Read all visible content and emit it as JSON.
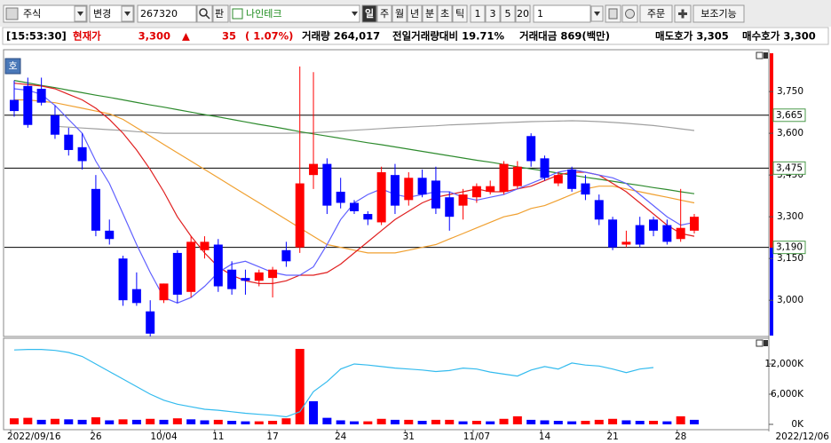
{
  "toolbar": {
    "market": "주식",
    "change": "변경",
    "code": "267320",
    "pan": "판",
    "name": "나인테크",
    "periods": [
      "일",
      "주",
      "월",
      "년",
      "분",
      "초",
      "틱"
    ],
    "minutes": [
      "1",
      "3",
      "5",
      "20"
    ],
    "count": "1",
    "order": "주문",
    "aux": "보조기능"
  },
  "quote": {
    "time": "[15:53:30]",
    "label": "현재가",
    "price": "3,300",
    "arrow": "▲",
    "change": "35",
    "change_pct": "( 1.07%)",
    "volume": "거래량 264,017",
    "volume_ratio": "전일거래량대비 19.71%",
    "amount": "거래대금 869(백만)",
    "ask": "매도호가 3,305",
    "bid": "매수호가 3,300"
  },
  "panel_badge": "호",
  "date_range_end": "2022/12/06",
  "chart_data": [
    {
      "type": "candlestick",
      "categories": [
        "2022/09/16",
        null,
        null,
        null,
        null,
        null,
        "26",
        null,
        null,
        null,
        null,
        "10/04",
        null,
        null,
        null,
        "11",
        null,
        null,
        null,
        "17",
        null,
        null,
        null,
        null,
        "24",
        null,
        null,
        null,
        null,
        "31",
        null,
        null,
        null,
        null,
        "11/07",
        null,
        null,
        null,
        null,
        "14",
        null,
        null,
        null,
        null,
        "21",
        null,
        null,
        null,
        null,
        "28",
        null
      ],
      "open": [
        3720,
        3770,
        3760,
        3665,
        3595,
        3550,
        3400,
        3250,
        3150,
        3040,
        2960,
        3000,
        3170,
        3030,
        3180,
        3200,
        3110,
        3080,
        3070,
        3080,
        3180,
        3190,
        3450,
        3490,
        3390,
        3350,
        3310,
        3280,
        3450,
        3360,
        3440,
        3430,
        3370,
        3340,
        3370,
        3390,
        3390,
        3410,
        3590,
        3510,
        3420,
        3470,
        3420,
        3360,
        3290,
        3200,
        3270,
        3290,
        3270,
        3220,
        3250
      ],
      "high": [
        3790,
        3800,
        3800,
        3700,
        3620,
        3600,
        3450,
        3290,
        3160,
        3100,
        3000,
        3060,
        3180,
        3230,
        3230,
        3220,
        3140,
        3110,
        3110,
        3120,
        3210,
        3840,
        3820,
        3510,
        3440,
        3360,
        3320,
        3480,
        3490,
        3460,
        3470,
        3480,
        3390,
        3400,
        3420,
        3430,
        3500,
        3500,
        3600,
        3520,
        3460,
        3480,
        3450,
        3380,
        3300,
        3250,
        3300,
        3300,
        3290,
        3400,
        3310
      ],
      "low": [
        3660,
        3620,
        3700,
        3580,
        3520,
        3470,
        3230,
        3200,
        2980,
        2980,
        2870,
        2990,
        2990,
        3010,
        3150,
        3030,
        3020,
        3020,
        3050,
        3010,
        3120,
        3170,
        3400,
        3310,
        3330,
        3310,
        3270,
        3270,
        3310,
        3340,
        3370,
        3310,
        3250,
        3290,
        3350,
        3380,
        3380,
        3400,
        3480,
        3430,
        3410,
        3390,
        3360,
        3270,
        3180,
        3190,
        3190,
        3230,
        3200,
        3210,
        3240
      ],
      "close": [
        3680,
        3630,
        3710,
        3595,
        3540,
        3500,
        3250,
        3220,
        3000,
        2990,
        2880,
        3060,
        3020,
        3210,
        3210,
        3050,
        3040,
        3070,
        3100,
        3110,
        3140,
        3420,
        3490,
        3340,
        3350,
        3320,
        3290,
        3460,
        3340,
        3440,
        3380,
        3330,
        3300,
        3380,
        3410,
        3410,
        3490,
        3480,
        3500,
        3440,
        3450,
        3400,
        3380,
        3290,
        3190,
        3210,
        3200,
        3250,
        3210,
        3260,
        3300
      ],
      "up_color": "#ff0000",
      "down_color": "#0000ff",
      "series": [
        {
          "color": "#a0a0a0",
          "values": [
            null,
            null,
            null,
            3625,
            3622,
            3619,
            3616,
            3613,
            3610,
            3606,
            3603,
            3600,
            3600,
            3600,
            3600,
            3600,
            3600,
            3600,
            3600,
            3600,
            3600,
            3601,
            3602,
            3605,
            3608,
            3611,
            3614,
            3617,
            3620,
            3622,
            3625,
            3627,
            3630,
            3632,
            3634,
            3636,
            3638,
            3640,
            3642,
            3643,
            3644,
            3645,
            3644,
            3642,
            3639,
            3636,
            3632,
            3628,
            3622,
            3616,
            3610
          ]
        },
        {
          "color": "#2e8b2e",
          "values": [
            3790,
            3781,
            3772,
            3764,
            3755,
            3746,
            3737,
            3729,
            3720,
            3711,
            3702,
            3694,
            3685,
            3676,
            3667,
            3659,
            3650,
            3641,
            3632,
            3624,
            3615,
            3606,
            3598,
            3590,
            3582,
            3574,
            3566,
            3559,
            3551,
            3543,
            3535,
            3527,
            3519,
            3511,
            3503,
            3496,
            3488,
            3480,
            3472,
            3465,
            3457,
            3450,
            3442,
            3435,
            3428,
            3420,
            3413,
            3405,
            3398,
            3390,
            3383
          ]
        },
        {
          "color": "#f0a030",
          "values": [
            3720,
            3720,
            3715,
            3710,
            3700,
            3690,
            3680,
            3670,
            3650,
            3620,
            3590,
            3560,
            3530,
            3500,
            3470,
            3440,
            3410,
            3380,
            3350,
            3320,
            3290,
            3260,
            3230,
            3200,
            3190,
            3180,
            3170,
            3170,
            3170,
            3180,
            3190,
            3200,
            3220,
            3240,
            3260,
            3280,
            3300,
            3310,
            3330,
            3340,
            3360,
            3380,
            3400,
            3410,
            3410,
            3400,
            3390,
            3380,
            3370,
            3360,
            3350
          ]
        },
        {
          "color": "#e02020",
          "values": [
            3780,
            3775,
            3770,
            3760,
            3740,
            3720,
            3690,
            3650,
            3600,
            3540,
            3470,
            3390,
            3300,
            3230,
            3170,
            3120,
            3090,
            3070,
            3060,
            3060,
            3070,
            3090,
            3090,
            3100,
            3130,
            3170,
            3210,
            3250,
            3290,
            3320,
            3350,
            3370,
            3380,
            3390,
            3400,
            3390,
            3390,
            3400,
            3410,
            3430,
            3450,
            3460,
            3460,
            3450,
            3420,
            3390,
            3350,
            3310,
            3270,
            3240,
            3230
          ]
        },
        {
          "color": "#6060ff",
          "values": [
            3760,
            3755,
            3740,
            3700,
            3650,
            3600,
            3500,
            3420,
            3310,
            3200,
            3100,
            3010,
            2990,
            3010,
            3050,
            3100,
            3130,
            3140,
            3120,
            3100,
            3090,
            3090,
            3120,
            3200,
            3290,
            3350,
            3380,
            3400,
            3380,
            3370,
            3380,
            3390,
            3390,
            3370,
            3360,
            3370,
            3380,
            3400,
            3420,
            3440,
            3460,
            3470,
            3460,
            3450,
            3440,
            3420,
            3380,
            3340,
            3300,
            3270,
            3280
          ]
        }
      ],
      "ylim": [
        2873,
        3894
      ],
      "yticks": [
        {
          "value": 3000,
          "label": "3,000"
        },
        {
          "value": 3150,
          "label": "3,150"
        },
        {
          "value": 3300,
          "label": "3,300"
        },
        {
          "value": 3450,
          "label": "3,450"
        },
        {
          "value": 3600,
          "label": "3,600"
        },
        {
          "value": 3750,
          "label": "3,750"
        }
      ],
      "hlines": [
        {
          "value": 3665,
          "label": "3,665"
        },
        {
          "value": 3475,
          "label": "3,475"
        },
        {
          "value": 3190,
          "label": "3,190"
        }
      ],
      "grid": false
    },
    {
      "type": "bar",
      "values": [
        1200,
        1300,
        900,
        1100,
        1000,
        900,
        1400,
        800,
        1000,
        900,
        1100,
        900,
        1200,
        1000,
        800,
        900,
        700,
        600,
        600,
        700,
        1200,
        15000,
        4600,
        1300,
        800,
        600,
        600,
        1100,
        900,
        900,
        700,
        900,
        900,
        600,
        700,
        600,
        1100,
        1600,
        900,
        800,
        700,
        600,
        700,
        900,
        1100,
        800,
        700,
        700,
        600,
        1600,
        900
      ],
      "up_color": "#ff0000",
      "down_color": "#0000ff",
      "series": [
        {
          "color": "#33bbee",
          "values": [
            14800,
            14900,
            14900,
            14700,
            14300,
            13500,
            12000,
            10500,
            9000,
            7500,
            6000,
            4800,
            4000,
            3500,
            3000,
            2800,
            2500,
            2200,
            2000,
            1800,
            1500,
            2500,
            6500,
            8500,
            11000,
            12000,
            11800,
            11500,
            11200,
            11000,
            10800,
            10500,
            10700,
            11200,
            11000,
            10400,
            10000,
            9600,
            10800,
            11500,
            11000,
            12200,
            11800,
            11600,
            11000,
            10300,
            11000,
            11300,
            null,
            null,
            null
          ]
        }
      ],
      "ylim": [
        0,
        17300
      ],
      "yticks": [
        {
          "value": 0,
          "label": "0K"
        },
        {
          "value": 6000,
          "label": "6,000K"
        },
        {
          "value": 12000,
          "label": "12,000K"
        }
      ],
      "grid": false
    }
  ]
}
